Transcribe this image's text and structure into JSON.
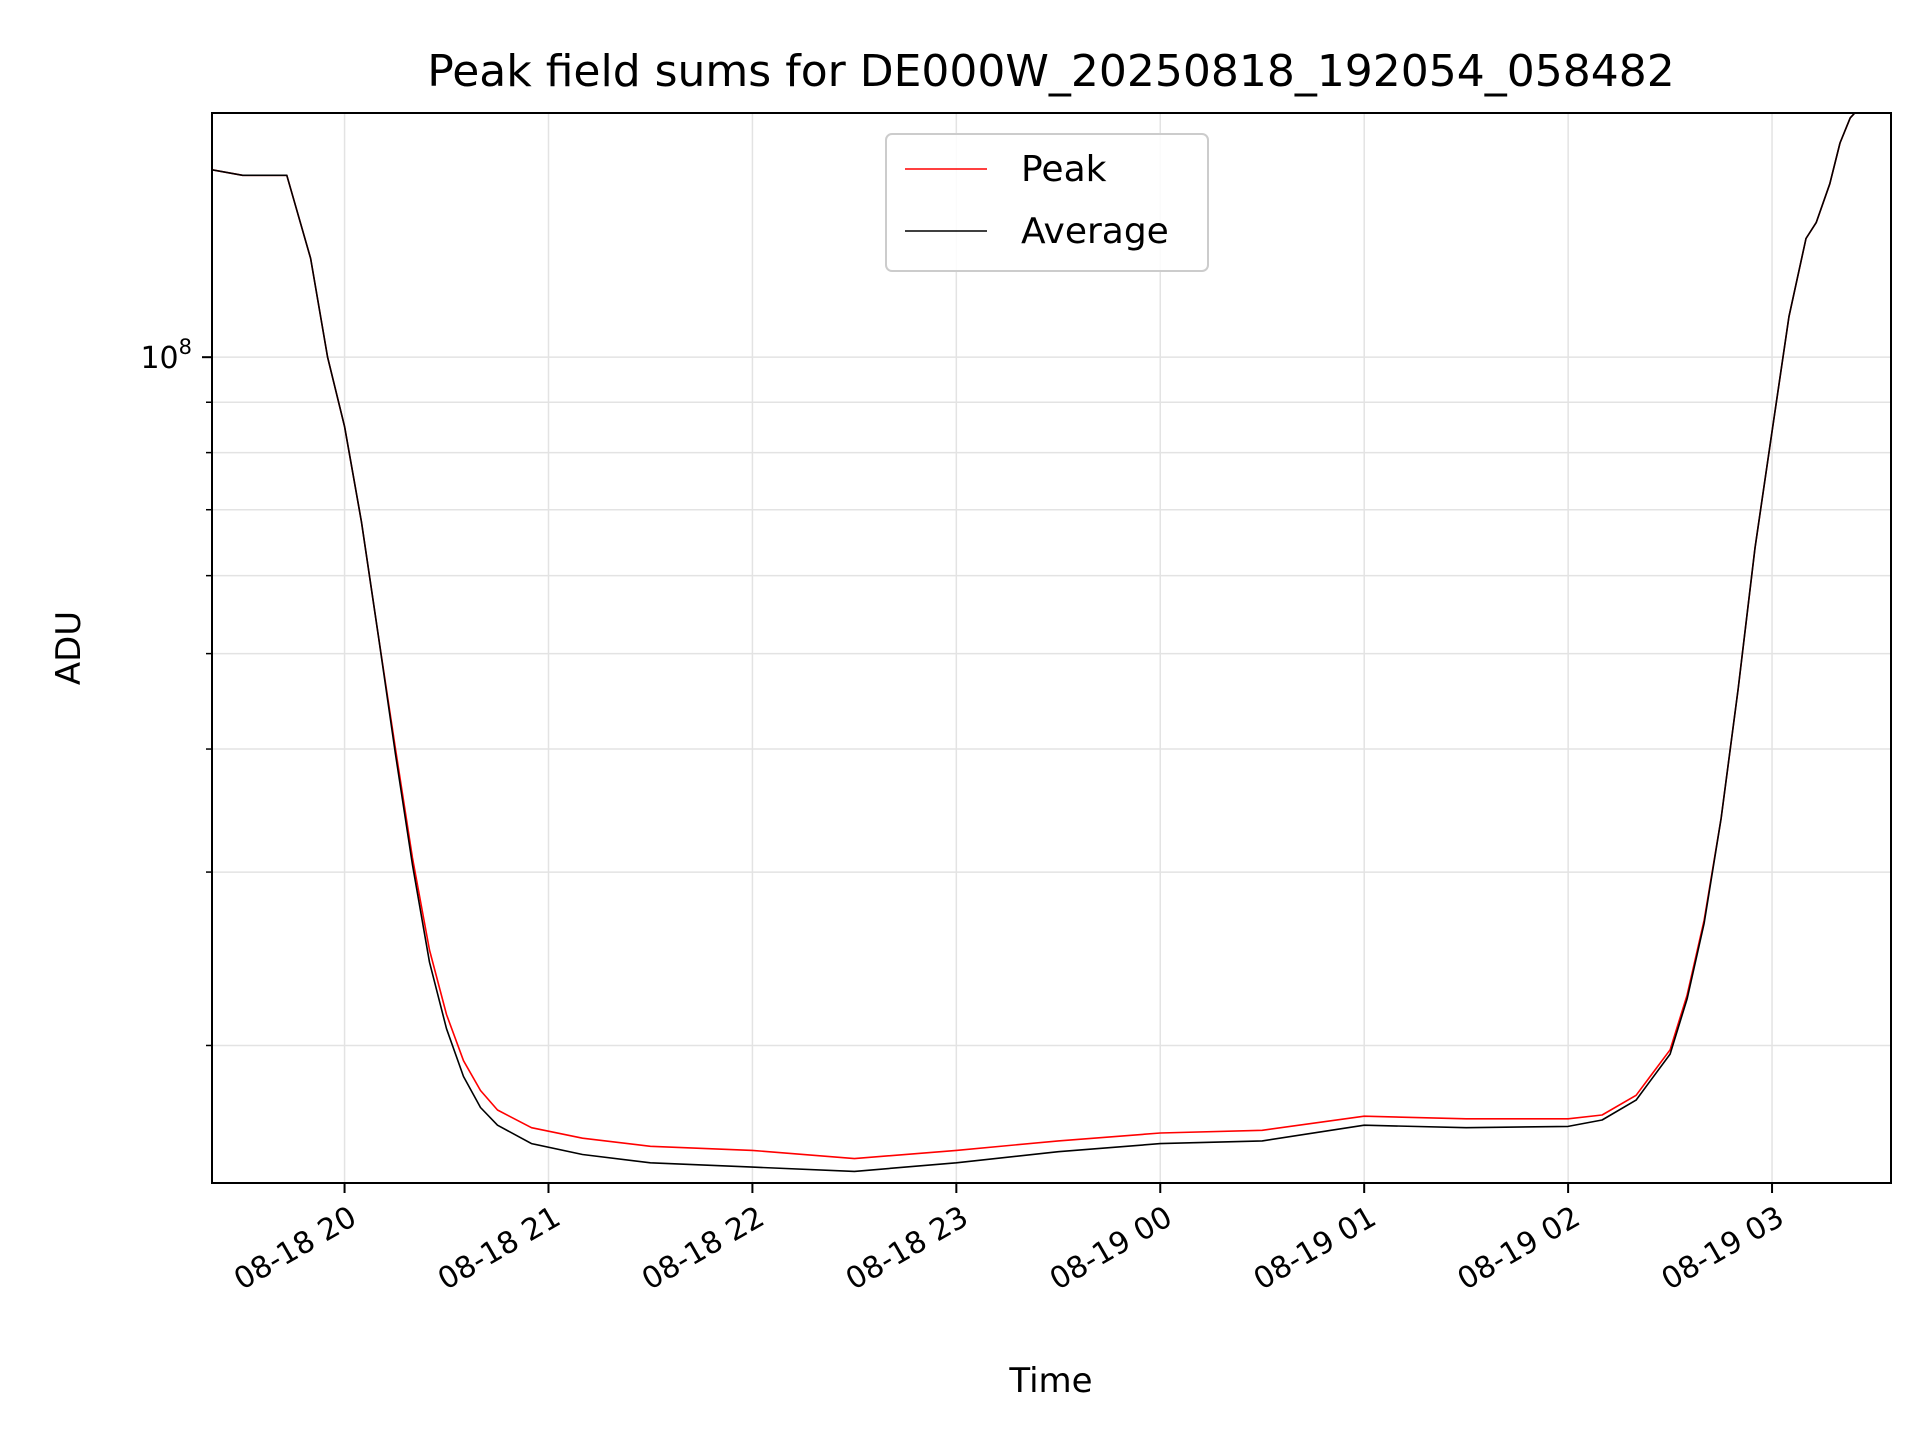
{
  "chart_data": {
    "type": "line",
    "title": "Peak field sums for DE000W_20250818_192054_058482",
    "xlabel": "Time",
    "ylabel": "ADU",
    "y_scale": "log",
    "xlim": [
      "2025-08-18 19:21",
      "2025-08-19 03:35"
    ],
    "ylim": [
      14500000,
      177000000
    ],
    "x_ticks": [
      {
        "value": "2025-08-18 20:00",
        "label": "08-18 20"
      },
      {
        "value": "2025-08-18 21:00",
        "label": "08-18 21"
      },
      {
        "value": "2025-08-18 22:00",
        "label": "08-18 22"
      },
      {
        "value": "2025-08-18 23:00",
        "label": "08-18 23"
      },
      {
        "value": "2025-08-19 00:00",
        "label": "08-19 00"
      },
      {
        "value": "2025-08-19 01:00",
        "label": "08-19 01"
      },
      {
        "value": "2025-08-19 02:00",
        "label": "08-19 02"
      },
      {
        "value": "2025-08-19 03:00",
        "label": "08-19 03"
      }
    ],
    "y_major_ticks": [
      {
        "value": 100000000,
        "label_base": "10",
        "label_exp": "8"
      }
    ],
    "y_minor_ticks": [
      20000000,
      30000000,
      40000000,
      50000000,
      60000000,
      70000000,
      80000000,
      90000000
    ],
    "grid": true,
    "legend": "upper center",
    "series": [
      {
        "name": "Peak",
        "color": "#ff0000",
        "points": [
          [
            "2025-08-18 19:21",
            155000000
          ],
          [
            "2025-08-18 19:30",
            153000000
          ],
          [
            "2025-08-18 19:43",
            153000000
          ],
          [
            "2025-08-18 19:50",
            126000000
          ],
          [
            "2025-08-18 19:55",
            100000000
          ],
          [
            "2025-08-18 20:00",
            85000000
          ],
          [
            "2025-08-18 20:05",
            68000000
          ],
          [
            "2025-08-18 20:10",
            52000000
          ],
          [
            "2025-08-18 20:15",
            40000000
          ],
          [
            "2025-08-18 20:20",
            31000000
          ],
          [
            "2025-08-18 20:25",
            25000000
          ],
          [
            "2025-08-18 20:30",
            21500000
          ],
          [
            "2025-08-18 20:35",
            19300000
          ],
          [
            "2025-08-18 20:40",
            18000000
          ],
          [
            "2025-08-18 20:45",
            17200000
          ],
          [
            "2025-08-18 20:55",
            16500000
          ],
          [
            "2025-08-18 21:10",
            16100000
          ],
          [
            "2025-08-18 21:30",
            15800000
          ],
          [
            "2025-08-18 22:00",
            15650000
          ],
          [
            "2025-08-18 22:30",
            15350000
          ],
          [
            "2025-08-18 23:00",
            15650000
          ],
          [
            "2025-08-18 23:30",
            16000000
          ],
          [
            "2025-08-19 00:00",
            16300000
          ],
          [
            "2025-08-19 00:30",
            16400000
          ],
          [
            "2025-08-19 01:00",
            16950000
          ],
          [
            "2025-08-19 01:30",
            16850000
          ],
          [
            "2025-08-19 02:00",
            16850000
          ],
          [
            "2025-08-19 02:10",
            17000000
          ],
          [
            "2025-08-19 02:20",
            17800000
          ],
          [
            "2025-08-19 02:30",
            19800000
          ],
          [
            "2025-08-19 02:35",
            22500000
          ],
          [
            "2025-08-19 02:40",
            26800000
          ],
          [
            "2025-08-19 02:45",
            34000000
          ],
          [
            "2025-08-19 02:50",
            46000000
          ],
          [
            "2025-08-19 02:55",
            64000000
          ],
          [
            "2025-08-19 03:00",
            84000000
          ],
          [
            "2025-08-19 03:05",
            110000000
          ],
          [
            "2025-08-19 03:10",
            132000000
          ],
          [
            "2025-08-19 03:13",
            137000000
          ],
          [
            "2025-08-19 03:17",
            150000000
          ],
          [
            "2025-08-19 03:20",
            165000000
          ],
          [
            "2025-08-19 03:23",
            175000000
          ],
          [
            "2025-08-19 03:25",
            178000000
          ]
        ]
      },
      {
        "name": "Average",
        "color": "#000000",
        "points": [
          [
            "2025-08-18 19:21",
            155000000
          ],
          [
            "2025-08-18 19:30",
            153000000
          ],
          [
            "2025-08-18 19:43",
            153000000
          ],
          [
            "2025-08-18 19:50",
            126000000
          ],
          [
            "2025-08-18 19:55",
            100000000
          ],
          [
            "2025-08-18 20:00",
            85000000
          ],
          [
            "2025-08-18 20:05",
            68000000
          ],
          [
            "2025-08-18 20:10",
            52000000
          ],
          [
            "2025-08-18 20:15",
            39500000
          ],
          [
            "2025-08-18 20:20",
            30500000
          ],
          [
            "2025-08-18 20:25",
            24300000
          ],
          [
            "2025-08-18 20:30",
            20800000
          ],
          [
            "2025-08-18 20:35",
            18600000
          ],
          [
            "2025-08-18 20:40",
            17300000
          ],
          [
            "2025-08-18 20:45",
            16600000
          ],
          [
            "2025-08-18 20:55",
            15900000
          ],
          [
            "2025-08-18 21:10",
            15500000
          ],
          [
            "2025-08-18 21:30",
            15200000
          ],
          [
            "2025-08-18 22:00",
            15050000
          ],
          [
            "2025-08-18 22:30",
            14900000
          ],
          [
            "2025-08-18 23:00",
            15200000
          ],
          [
            "2025-08-18 23:30",
            15600000
          ],
          [
            "2025-08-19 00:00",
            15900000
          ],
          [
            "2025-08-19 00:30",
            16000000
          ],
          [
            "2025-08-19 01:00",
            16600000
          ],
          [
            "2025-08-19 01:30",
            16500000
          ],
          [
            "2025-08-19 02:00",
            16550000
          ],
          [
            "2025-08-19 02:10",
            16800000
          ],
          [
            "2025-08-19 02:20",
            17600000
          ],
          [
            "2025-08-19 02:30",
            19600000
          ],
          [
            "2025-08-19 02:35",
            22300000
          ],
          [
            "2025-08-19 02:40",
            26600000
          ],
          [
            "2025-08-19 02:45",
            34000000
          ],
          [
            "2025-08-19 02:50",
            46000000
          ],
          [
            "2025-08-19 02:55",
            64000000
          ],
          [
            "2025-08-19 03:00",
            84000000
          ],
          [
            "2025-08-19 03:05",
            110000000
          ],
          [
            "2025-08-19 03:10",
            132000000
          ],
          [
            "2025-08-19 03:13",
            137000000
          ],
          [
            "2025-08-19 03:17",
            150000000
          ],
          [
            "2025-08-19 03:20",
            165000000
          ],
          [
            "2025-08-19 03:23",
            175000000
          ],
          [
            "2025-08-19 03:25",
            178000000
          ]
        ]
      }
    ]
  }
}
